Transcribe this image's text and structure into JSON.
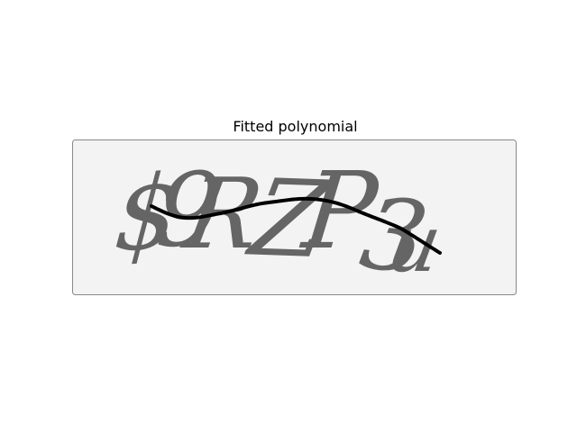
{
  "title": "Fitted polynomial",
  "captcha": {
    "glyphs": [
      "$",
      "9",
      "R",
      "Z",
      "P",
      "3",
      "u"
    ],
    "text_color": "#656565",
    "background_color": "#f3f3f3",
    "border_color": "#888888"
  },
  "curve": {
    "color": "#000000"
  }
}
